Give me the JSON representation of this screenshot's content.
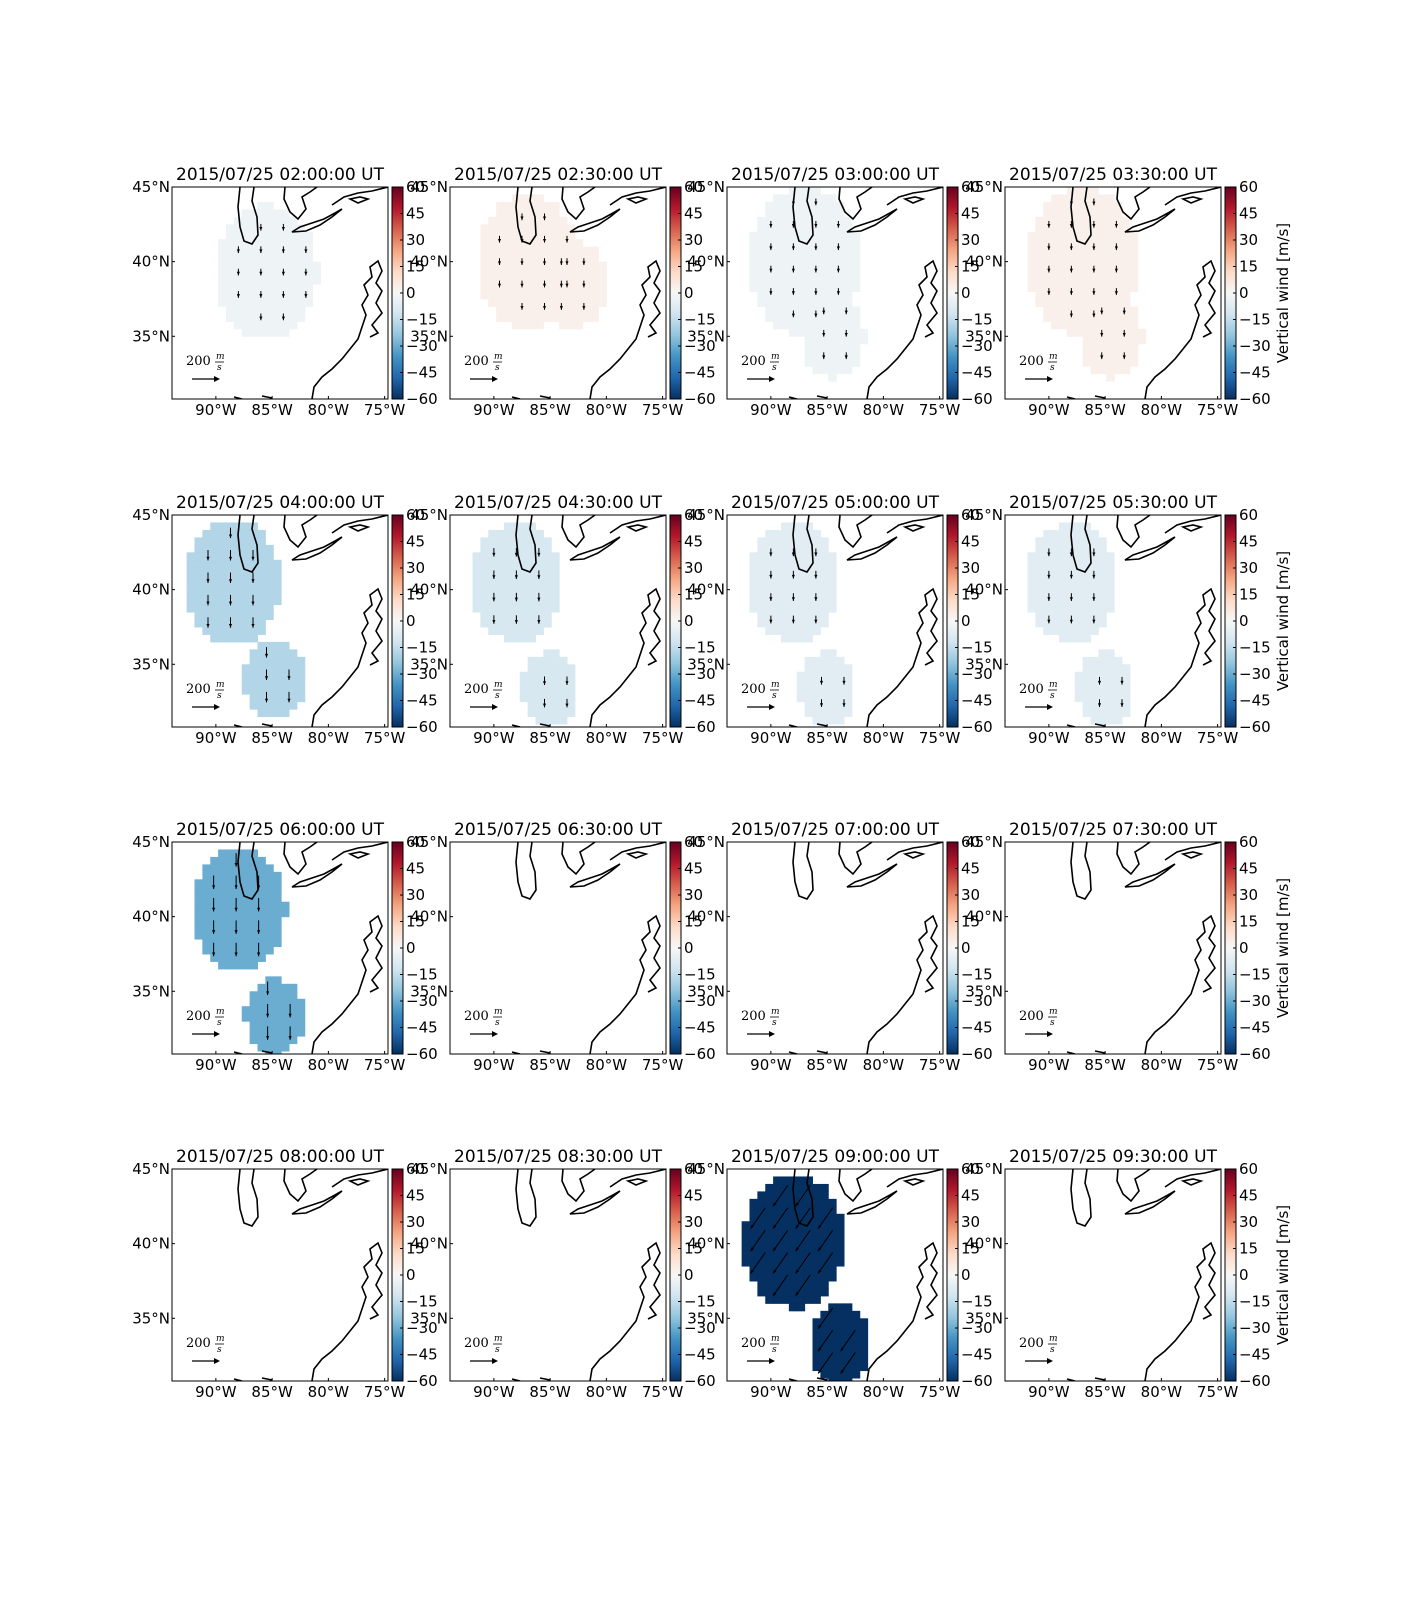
{
  "map": {
    "xlim": [
      -93.9,
      -74.7
    ],
    "ylim": [
      30.8,
      45
    ],
    "xticks": [
      {
        "value": -90,
        "label": "90°W"
      },
      {
        "value": -85,
        "label": "85°W"
      },
      {
        "value": -80,
        "label": "80°W"
      },
      {
        "value": -75,
        "label": "75°W"
      }
    ],
    "yticks": [
      {
        "value": 45,
        "label": "45°N"
      },
      {
        "value": 40,
        "label": "40°N"
      },
      {
        "value": 35,
        "label": "35°N"
      }
    ],
    "scale": {
      "value": 200,
      "numerator": "m",
      "denominator": "s"
    }
  },
  "colorbar": {
    "label": "Vertical wind [m/s]",
    "lim": [
      -60,
      60
    ],
    "ticks": [
      60,
      45,
      30,
      15,
      0,
      {
        "value": -15,
        "label": "−15"
      },
      {
        "value": -30,
        "label": "−30"
      },
      {
        "value": -45,
        "label": "−45"
      },
      {
        "value": -60,
        "label": "−60"
      }
    ],
    "colormap": [
      "#053061",
      "#2166ac",
      "#4393c3",
      "#92c5de",
      "#d1e5f0",
      "#f7f7f7",
      "#fddbc7",
      "#f4a582",
      "#d6604d",
      "#b2182b",
      "#67001f"
    ]
  },
  "panels": [
    {
      "title": "2015/07/25 02:00:00 UT",
      "vertical_wind": -3,
      "regions": [
        {
          "lon": -85.5,
          "lat": 39.3,
          "radius": 4.5
        }
      ]
    },
    {
      "title": "2015/07/25 02:30:00 UT",
      "vertical_wind": 3,
      "regions": [
        {
          "lon": -87,
          "lat": 40,
          "radius": 4.5
        },
        {
          "lon": -83,
          "lat": 38.5,
          "radius": 3
        }
      ]
    },
    {
      "title": "2015/07/25 03:00:00 UT",
      "vertical_wind": -3,
      "regions": [
        {
          "lon": -87,
          "lat": 40,
          "radius": 5
        },
        {
          "lon": -84.5,
          "lat": 35,
          "radius": 2.8
        }
      ]
    },
    {
      "title": "2015/07/25 03:30:00 UT",
      "vertical_wind": 3,
      "regions": [
        {
          "lon": -87,
          "lat": 40,
          "radius": 5
        },
        {
          "lon": -84.5,
          "lat": 35,
          "radius": 2.8
        }
      ]
    },
    {
      "title": "2015/07/25 04:00:00 UT",
      "vertical_wind": -18,
      "regions": [
        {
          "lon": -88.5,
          "lat": 40.5,
          "radius": 4.2
        },
        {
          "lon": -84.8,
          "lat": 34,
          "radius": 2.7
        }
      ]
    },
    {
      "title": "2015/07/25 04:30:00 UT",
      "vertical_wind": -10,
      "regions": [
        {
          "lon": -88,
          "lat": 40.5,
          "radius": 4
        },
        {
          "lon": -85,
          "lat": 33.4,
          "radius": 2.5
        }
      ]
    },
    {
      "title": "2015/07/25 05:00:00 UT",
      "vertical_wind": -7,
      "regions": [
        {
          "lon": -88,
          "lat": 40.5,
          "radius": 4
        },
        {
          "lon": -85,
          "lat": 33.4,
          "radius": 2.5
        }
      ]
    },
    {
      "title": "2015/07/25 05:30:00 UT",
      "vertical_wind": -7,
      "regions": [
        {
          "lon": -88,
          "lat": 40.5,
          "radius": 4
        },
        {
          "lon": -85,
          "lat": 33.4,
          "radius": 2.5
        }
      ]
    },
    {
      "title": "2015/07/25 06:00:00 UT",
      "vertical_wind": -30,
      "regions": [
        {
          "lon": -88,
          "lat": 40.5,
          "radius": 4.2
        },
        {
          "lon": -84.8,
          "lat": 33.3,
          "radius": 2.6
        }
      ]
    },
    {
      "title": "2015/07/25 06:30:00 UT",
      "vertical_wind": null,
      "regions": []
    },
    {
      "title": "2015/07/25 07:00:00 UT",
      "vertical_wind": null,
      "regions": []
    },
    {
      "title": "2015/07/25 07:30:00 UT",
      "vertical_wind": null,
      "regions": []
    },
    {
      "title": "2015/07/25 08:00:00 UT",
      "vertical_wind": null,
      "regions": []
    },
    {
      "title": "2015/07/25 08:30:00 UT",
      "vertical_wind": null,
      "regions": []
    },
    {
      "title": "2015/07/25 09:00:00 UT",
      "vertical_wind": -60,
      "regions": [
        {
          "lon": -88,
          "lat": 40.2,
          "radius": 4.5
        },
        {
          "lon": -83.8,
          "lat": 33.2,
          "radius": 2.7
        }
      ]
    },
    {
      "title": "2015/07/25 09:30:00 UT",
      "vertical_wind": null,
      "regions": []
    }
  ]
}
